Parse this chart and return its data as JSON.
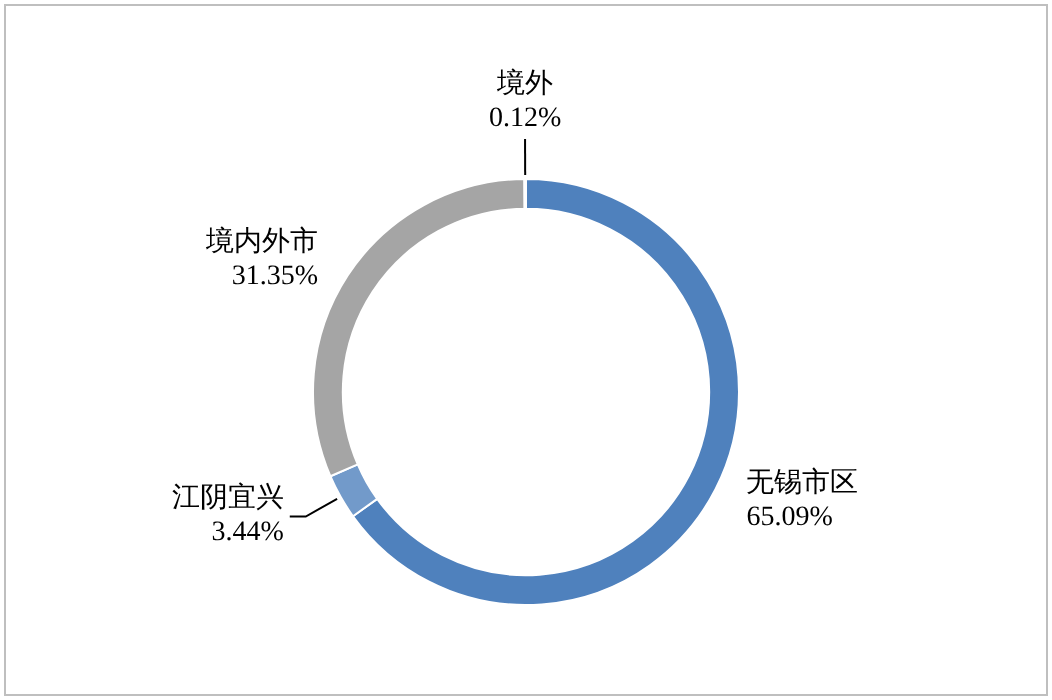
{
  "chart_data": {
    "type": "donut",
    "categories": [
      "无锡市区",
      "江阴宜兴",
      "境内外市",
      "境外"
    ],
    "values": [
      65.09,
      3.44,
      31.35,
      0.12
    ],
    "colors": [
      "#4f81bd",
      "#729aca",
      "#a5a5a5",
      "#2c4d75"
    ],
    "value_labels": [
      "65.09%",
      "3.44%",
      "31.35%",
      "0.12%"
    ],
    "legend": false
  }
}
